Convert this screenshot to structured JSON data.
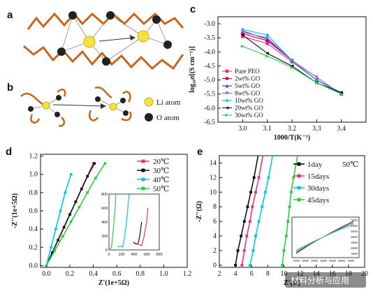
{
  "labels": {
    "a": "a",
    "b": "b",
    "c": "c",
    "d": "d",
    "e": "e"
  },
  "schematic": {
    "li_label": "Li atom",
    "o_label": "O atom"
  },
  "watermark": "材料分析与应用",
  "colors": {
    "chain": "#c8651b",
    "li": "#f5e23a",
    "o": "#222222",
    "bond": "#888888"
  },
  "chart_data": [
    {
      "id": "c",
      "type": "line",
      "xlabel": "1000/T(K⁻¹)",
      "ylabel": "log₁₀σ[(S cm⁻¹)]",
      "xlim": [
        2.9,
        3.5
      ],
      "ylim": [
        -6.5,
        -2.75
      ],
      "xticks": [
        "3.0",
        "3.1",
        "3.2",
        "3.3",
        "3.4"
      ],
      "yticks": [
        "-3.0",
        "-3.5",
        "-4.0",
        "-4.5",
        "-5.0",
        "-5.5",
        "-6.0",
        "-6.5"
      ],
      "x": [
        3.0,
        3.1,
        3.2,
        3.3,
        3.4
      ],
      "legend_position": "lower-left",
      "series": [
        {
          "name": "Pure PEO",
          "color": "#e8308a",
          "marker": "square",
          "values": [
            -3.45,
            -3.7,
            -4.35,
            -5.0,
            -5.5
          ]
        },
        {
          "name": "2wt% GO",
          "color": "#c4002b",
          "marker": "circle",
          "values": [
            -3.35,
            -3.6,
            -4.3,
            -5.0,
            -5.45
          ]
        },
        {
          "name": "5wt% GO",
          "color": "#1e3cc8",
          "marker": "triangle-up",
          "values": [
            -3.25,
            -3.55,
            -4.3,
            -5.0,
            -5.45
          ]
        },
        {
          "name": "8wt% GO",
          "color": "#d040d0",
          "marker": "triangle-down",
          "values": [
            -3.3,
            -3.5,
            -4.3,
            -4.9,
            -5.5
          ]
        },
        {
          "name": "10wt% GO",
          "color": "#00b8f0",
          "marker": "diamond",
          "values": [
            -3.2,
            -3.4,
            -4.3,
            -5.0,
            -5.45
          ]
        },
        {
          "name": "20wt% GO",
          "color": "#111111",
          "marker": "triangle-left",
          "values": [
            -3.4,
            -4.05,
            -4.5,
            -5.1,
            -5.45
          ]
        },
        {
          "name": "30wt% GO",
          "color": "#2ecc40",
          "marker": "triangle-right",
          "values": [
            -3.8,
            -4.15,
            -4.55,
            -5.1,
            -5.5
          ]
        }
      ]
    },
    {
      "id": "d",
      "type": "scatter",
      "xlabel": "Z'(1e+5Ω)",
      "ylabel": "-Z''(1e+5Ω)",
      "xlim": [
        -0.05,
        1.2
      ],
      "ylim": [
        -0.02,
        1.22
      ],
      "xticks": [
        "0.0",
        "0.2",
        "0.4",
        "0.6",
        "0.8",
        "1.0",
        "1.2"
      ],
      "yticks": [
        "0.0",
        "0.2",
        "0.4",
        "0.6",
        "0.8",
        "1.0",
        "1.2"
      ],
      "legend_position": "top-right",
      "series": [
        {
          "name": "20℃",
          "color": "#e8308a",
          "x": [
            0.0,
            0.05,
            0.1,
            0.15,
            0.2,
            0.25,
            0.3,
            0.35,
            0.4
          ],
          "y": [
            0.0,
            0.14,
            0.28,
            0.42,
            0.56,
            0.7,
            0.84,
            0.98,
            1.12
          ]
        },
        {
          "name": "30℃",
          "color": "#111111",
          "x": [
            0.0,
            0.05,
            0.1,
            0.15,
            0.2,
            0.25,
            0.3,
            0.35,
            0.41
          ],
          "y": [
            0.0,
            0.14,
            0.28,
            0.42,
            0.56,
            0.7,
            0.84,
            0.98,
            1.12
          ]
        },
        {
          "name": "40℃",
          "color": "#00c8e8",
          "x": [
            0.0,
            0.04,
            0.08,
            0.12,
            0.16,
            0.21
          ],
          "y": [
            0.0,
            0.2,
            0.4,
            0.6,
            0.8,
            1.0
          ]
        },
        {
          "name": "50℃",
          "color": "#2ecc40",
          "x": [
            0.0,
            0.07,
            0.14,
            0.21,
            0.28,
            0.35,
            0.42,
            0.5
          ],
          "y": [
            0.0,
            0.16,
            0.32,
            0.48,
            0.64,
            0.8,
            0.96,
            1.12
          ]
        }
      ],
      "inset": {
        "xlim": [
          0,
          800
        ],
        "ylim": [
          0,
          800
        ],
        "xticks": [
          "0",
          "200",
          "400",
          "600",
          "800"
        ],
        "yticks": [
          "0",
          "200",
          "400",
          "600",
          "800"
        ],
        "series": [
          {
            "color": "#2ecc40",
            "x": [
              0,
              40,
              60,
              80,
              100,
              110
            ],
            "y": [
              0,
              40,
              200,
              400,
              600,
              800
            ]
          },
          {
            "color": "#00c8e8",
            "x": [
              140,
              180,
              220,
              250,
              280,
              300,
              320
            ],
            "y": [
              40,
              60,
              40,
              200,
              400,
              600,
              800
            ]
          },
          {
            "color": "#111111",
            "x": [
              380,
              420,
              460,
              490,
              520
            ],
            "y": [
              110,
              90,
              80,
              200,
              400
            ]
          },
          {
            "color": "#e8308a",
            "x": [
              420,
              470,
              520,
              560,
              600,
              620
            ],
            "y": [
              100,
              80,
              60,
              200,
              400,
              600
            ]
          }
        ]
      }
    },
    {
      "id": "e",
      "type": "scatter",
      "xlabel": "Z'(Ω)",
      "ylabel": "-Z''(Ω)",
      "xlim": [
        2,
        20
      ],
      "ylim": [
        -0.3,
        15
      ],
      "xticks": [
        "2",
        "4",
        "6",
        "8",
        "10",
        "12",
        "14",
        "16",
        "18",
        "20"
      ],
      "yticks": [
        "0",
        "2",
        "4",
        "6",
        "8",
        "10",
        "12",
        "14"
      ],
      "annotation": "50℃",
      "legend_position": "top-right",
      "series": [
        {
          "name": "1day",
          "color": "#111111",
          "x": [
            4.0,
            4.3,
            4.7,
            5.1,
            5.5,
            5.9,
            6.3
          ],
          "y": [
            0,
            2,
            4,
            6,
            8,
            10,
            12
          ]
        },
        {
          "name": "15days",
          "color": "#e8308a",
          "x": [
            4.8,
            5.1,
            5.4,
            5.8,
            6.1,
            6.5,
            6.9
          ],
          "y": [
            0,
            2,
            4,
            6,
            8,
            10,
            12
          ]
        },
        {
          "name": "30days",
          "color": "#00c8e8",
          "x": [
            5.8,
            6.2,
            6.5,
            6.9,
            7.3,
            7.7,
            8.1
          ],
          "y": [
            0,
            2,
            4,
            6,
            8,
            10,
            12
          ]
        },
        {
          "name": "45days",
          "color": "#2ecc40",
          "x": [
            9.8,
            10.0,
            10.3,
            10.5,
            10.7,
            10.9,
            11.2
          ],
          "y": [
            0,
            2,
            4,
            6,
            8,
            10,
            12
          ]
        }
      ],
      "inset": {
        "xticks": [
          "10000",
          "20000",
          "30000",
          "40000",
          "50000",
          "60000",
          "70000"
        ],
        "yticks": [
          "10000",
          "20000",
          "30000",
          "40000",
          "50000",
          "60000",
          "70000"
        ]
      }
    }
  ]
}
